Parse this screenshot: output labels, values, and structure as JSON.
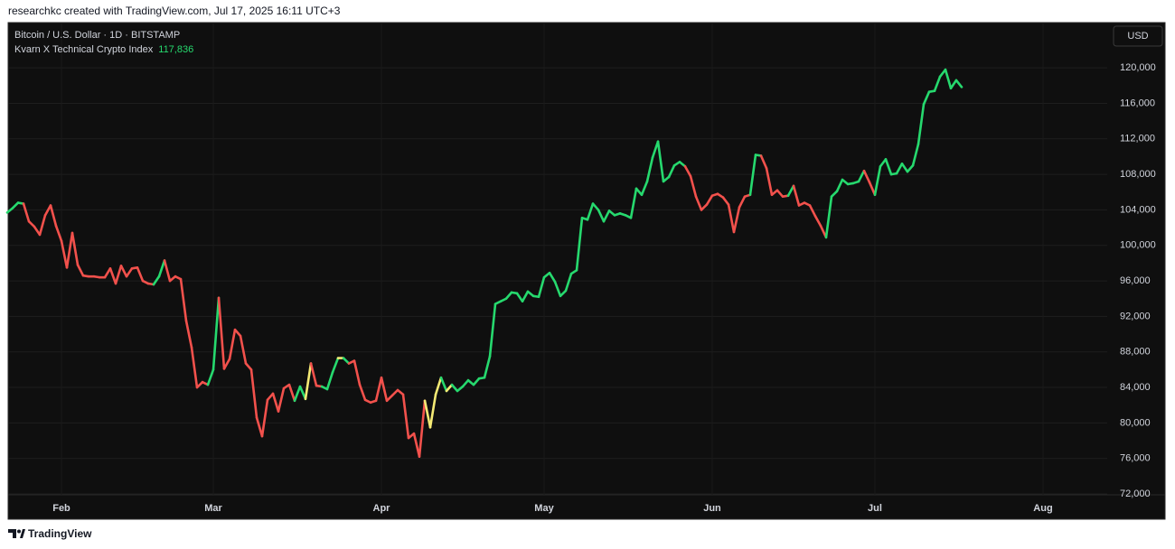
{
  "chart_data": {
    "type": "line",
    "credit": "researchkc created with TradingView.com, Jul 17, 2025 16:11 UTC+3",
    "subtitle": "Bitcoin / U.S. Dollar · 1D · BITSTAMP",
    "currency": "USD",
    "brand": "TradingView",
    "grid": true,
    "categories": [
      null,
      null,
      null,
      null,
      null,
      null,
      null,
      null,
      null,
      null,
      "Feb",
      null,
      null,
      null,
      null,
      null,
      null,
      null,
      null,
      null,
      null,
      null,
      null,
      null,
      null,
      null,
      null,
      null,
      null,
      null,
      null,
      null,
      null,
      null,
      null,
      null,
      null,
      null,
      "Mar",
      null,
      null,
      null,
      null,
      null,
      null,
      null,
      null,
      null,
      null,
      null,
      null,
      null,
      null,
      null,
      null,
      null,
      null,
      null,
      null,
      null,
      null,
      null,
      null,
      null,
      null,
      null,
      null,
      null,
      null,
      "Apr",
      null,
      null,
      null,
      null,
      null,
      null,
      null,
      null,
      null,
      null,
      null,
      null,
      null,
      null,
      null,
      null,
      null,
      null,
      null,
      null,
      null,
      null,
      null,
      null,
      null,
      null,
      null,
      null,
      null,
      "May",
      null,
      null,
      null,
      null,
      null,
      null,
      null,
      null,
      null,
      null,
      null,
      null,
      null,
      null,
      null,
      null,
      null,
      null,
      null,
      null,
      null,
      null,
      null,
      null,
      null,
      null,
      null,
      null,
      null,
      null,
      "Jun",
      null,
      null,
      null,
      null,
      null,
      null,
      null,
      null,
      null,
      null,
      null,
      null,
      null,
      null,
      null,
      null,
      null,
      null,
      null,
      null,
      null,
      null,
      null,
      null,
      null,
      null,
      null,
      null,
      null,
      "Jul",
      null,
      null,
      null,
      null,
      null,
      null,
      null,
      null,
      null,
      null,
      null,
      null,
      null,
      null,
      null,
      null,
      null,
      null,
      null,
      null,
      null,
      null,
      null,
      null,
      null,
      null,
      null,
      null,
      null,
      null,
      "Aug",
      null,
      null,
      null,
      null,
      null,
      null,
      null,
      null,
      null,
      null,
      null
    ],
    "series": [
      {
        "name": "Kvarn X Technical Crypto Index",
        "values": [
          103700,
          104200,
          104800,
          104700,
          102700,
          102100,
          101200,
          103400,
          104500,
          102200,
          100500,
          97500,
          101400,
          97800,
          96600,
          96500,
          96500,
          96400,
          96400,
          97400,
          95700,
          97700,
          96500,
          97400,
          97500,
          96000,
          95700,
          95600,
          96500,
          98300,
          96000,
          96500,
          96200,
          91500,
          88500,
          84000,
          84600,
          84300,
          86000,
          94100,
          86100,
          87200,
          90500,
          89800,
          86700,
          86000,
          80600,
          78500,
          82600,
          83300,
          81300,
          83900,
          84300,
          82500,
          84100,
          82700,
          86700,
          84200,
          84100,
          83800,
          85700,
          87300,
          87300,
          86700,
          87000,
          84300,
          82600,
          82300,
          82500,
          85100,
          82500,
          83100,
          83700,
          83200,
          78300,
          78800,
          76200,
          82500,
          79500,
          83200,
          85100,
          83600,
          84300,
          83600,
          84100,
          84800,
          84300,
          85000,
          85100,
          87500,
          93400,
          93700,
          94000,
          94700,
          94600,
          93700,
          94800,
          94300,
          94200,
          96400,
          96900,
          95900,
          94300,
          94900,
          96800,
          97200,
          103100,
          102900,
          104700,
          104000,
          102700,
          103900,
          103400,
          103600,
          103400,
          103100,
          106400,
          105700,
          107200,
          109900,
          111700,
          107200,
          107700,
          109000,
          109400,
          108900,
          107800,
          105500,
          104000,
          104600,
          105600,
          105800,
          105400,
          104600,
          101500,
          104300,
          105500,
          105700,
          110200,
          110100,
          108700,
          105700,
          106200,
          105500,
          105600,
          106700,
          104500,
          104800,
          104500,
          103300,
          102200,
          100900,
          105500,
          106100,
          107400,
          106900,
          107000,
          107200,
          108400,
          107100,
          105700,
          108900,
          109700,
          108000,
          108100,
          109200,
          108300,
          109000,
          111400,
          115900,
          117300,
          117400,
          119000,
          119800,
          117700,
          118600,
          117836,
          null,
          null,
          null,
          null,
          null,
          null,
          null,
          null,
          null,
          null,
          null,
          null,
          null,
          null,
          null,
          null,
          null,
          null,
          null,
          null,
          null,
          null,
          null,
          null,
          null,
          null
        ],
        "value_labels": [
          null,
          null,
          null,
          null,
          null,
          null,
          null,
          null,
          null,
          null,
          null,
          null,
          null,
          null,
          null,
          null,
          null,
          null,
          null,
          null,
          null,
          null,
          null,
          null,
          null,
          null,
          null,
          null,
          null,
          null,
          null,
          null,
          null,
          null,
          null,
          null,
          null,
          null,
          null,
          null,
          null,
          null,
          null,
          null,
          null,
          null,
          null,
          null,
          null,
          null,
          null,
          null,
          null,
          null,
          null,
          null,
          null,
          null,
          null,
          null,
          null,
          null,
          null,
          null,
          null,
          null,
          null,
          null,
          null,
          null,
          null,
          null,
          null,
          null,
          null,
          null,
          null,
          null,
          null,
          null,
          null,
          null,
          null,
          null,
          null,
          null,
          null,
          null,
          null,
          null,
          null,
          null,
          null,
          null,
          null,
          null,
          null,
          null,
          null,
          null,
          null,
          null,
          null,
          null,
          null,
          null,
          null,
          null,
          null,
          null,
          null,
          null,
          null,
          null,
          null,
          null,
          null,
          null,
          null,
          null,
          null,
          null,
          null,
          null,
          null,
          null,
          null,
          null,
          null,
          null,
          null,
          null,
          null,
          null,
          null,
          null,
          null,
          null,
          null,
          null,
          null,
          null,
          null,
          null,
          null,
          null,
          null,
          null,
          null,
          null,
          null,
          null,
          null,
          null,
          null,
          null,
          null,
          null,
          null,
          null,
          null,
          null,
          null,
          null,
          null,
          null,
          null,
          null,
          null,
          null,
          null,
          null,
          null,
          null,
          null,
          null,
          "117,836",
          null,
          null,
          null,
          null,
          null,
          null,
          null,
          null,
          null,
          null,
          null,
          null,
          null,
          null,
          null,
          null,
          null,
          null,
          null,
          null,
          null,
          null,
          null,
          null,
          null,
          null
        ],
        "point_colors": [
          "#26d96e",
          "#26d96e",
          "#26d96e",
          "#26d96e",
          "#f2514c",
          "#f2514c",
          "#f2514c",
          "#f2514c",
          "#f2514c",
          "#f2514c",
          "#f2514c",
          "#f2514c",
          "#f2514c",
          "#f2514c",
          "#f2514c",
          "#f2514c",
          "#f2514c",
          "#f2514c",
          "#f2514c",
          "#f2514c",
          "#f2514c",
          "#f2514c",
          "#f2514c",
          "#f2514c",
          "#f2514c",
          "#f2514c",
          "#f2514c",
          "#f2514c",
          "#26d96e",
          "#26d96e",
          "#f2514c",
          "#f2514c",
          "#f2514c",
          "#f2514c",
          "#f2514c",
          "#f2514c",
          "#f2514c",
          "#f2514c",
          "#26d96e",
          "#26d96e",
          "#f2514c",
          "#f2514c",
          "#f2514c",
          "#f2514c",
          "#f2514c",
          "#f2514c",
          "#f2514c",
          "#f2514c",
          "#f2514c",
          "#f2514c",
          "#f2514c",
          "#f2514c",
          "#f2514c",
          "#f2514c",
          "#26d96e",
          "#26d96e",
          "#f4ea74",
          "#f2514c",
          "#f2514c",
          "#26d96e",
          "#26d96e",
          "#26d96e",
          "#f4ea74",
          "#26d96e",
          "#f2514c",
          "#f2514c",
          "#f2514c",
          "#f2514c",
          "#f2514c",
          "#f2514c",
          "#f2514c",
          "#f2514c",
          "#f2514c",
          "#f2514c",
          "#f2514c",
          "#f2514c",
          "#f2514c",
          "#f2514c",
          "#f4ea74",
          "#f4ea74",
          "#f4ea74",
          "#26d96e",
          "#f4ea74",
          "#26d96e",
          "#26d96e",
          "#26d96e",
          "#26d96e",
          "#26d96e",
          "#26d96e",
          "#26d96e",
          "#26d96e",
          "#26d96e",
          "#26d96e",
          "#26d96e",
          "#26d96e",
          "#26d96e",
          "#26d96e",
          "#26d96e",
          "#26d96e",
          "#26d96e",
          "#26d96e",
          "#26d96e",
          "#26d96e",
          "#26d96e",
          "#26d96e",
          "#26d96e",
          "#26d96e",
          "#26d96e",
          "#26d96e",
          "#26d96e",
          "#26d96e",
          "#26d96e",
          "#26d96e",
          "#26d96e",
          "#26d96e",
          "#26d96e",
          "#26d96e",
          "#26d96e",
          "#26d96e",
          "#26d96e",
          "#26d96e",
          "#26d96e",
          "#26d96e",
          "#26d96e",
          "#26d96e",
          "#26d96e",
          "#f2514c",
          "#f2514c",
          "#f2514c",
          "#f2514c",
          "#f2514c",
          "#f2514c",
          "#f2514c",
          "#f2514c",
          "#f2514c",
          "#f2514c",
          "#f2514c",
          "#f2514c",
          "#26d96e",
          "#26d96e",
          "#f2514c",
          "#f2514c",
          "#f2514c",
          "#f2514c",
          "#f2514c",
          "#26d96e",
          "#f2514c",
          "#f2514c",
          "#f2514c",
          "#f2514c",
          "#f2514c",
          "#f2514c",
          "#26d96e",
          "#26d96e",
          "#26d96e",
          "#26d96e",
          "#26d96e",
          "#26d96e",
          "#26d96e",
          "#f2514c",
          "#f2514c",
          "#26d96e",
          "#26d96e",
          "#26d96e",
          "#26d96e",
          "#26d96e",
          "#26d96e",
          "#26d96e",
          "#26d96e",
          "#26d96e",
          "#26d96e",
          "#26d96e",
          "#26d96e",
          "#26d96e",
          "#26d96e",
          "#26d96e",
          "#26d96e",
          null,
          null,
          null,
          null,
          null,
          null,
          null,
          null,
          null,
          null,
          null,
          null,
          null,
          null,
          null,
          null,
          null,
          null,
          null,
          null,
          null,
          null,
          null,
          null,
          null,
          null
        ]
      }
    ],
    "ylim": [
      71900,
      125100
    ],
    "yticks": [
      {
        "value": 72000,
        "label": "72,000"
      },
      {
        "value": 76000,
        "label": "76,000"
      },
      {
        "value": 80000,
        "label": "80,000"
      },
      {
        "value": 84000,
        "label": "84,000"
      },
      {
        "value": 88000,
        "label": "88,000"
      },
      {
        "value": 92000,
        "label": "92,000"
      },
      {
        "value": 96000,
        "label": "96,000"
      },
      {
        "value": 100000,
        "label": "100,000"
      },
      {
        "value": 104000,
        "label": "104,000"
      },
      {
        "value": 108000,
        "label": "108,000"
      },
      {
        "value": 112000,
        "label": "112,000"
      },
      {
        "value": 116000,
        "label": "116,000"
      },
      {
        "value": 120000,
        "label": "120,000"
      }
    ]
  }
}
